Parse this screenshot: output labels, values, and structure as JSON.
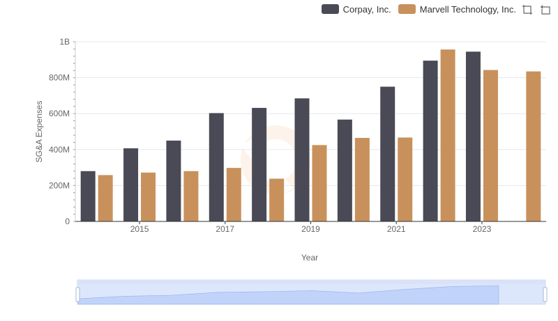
{
  "legend": {
    "items": [
      {
        "label": "Corpay, Inc.",
        "color": "#4a4a56"
      },
      {
        "label": "Marvell Technology, Inc.",
        "color": "#c8915c"
      }
    ]
  },
  "toolbox": {
    "icons": [
      "zoom-icon",
      "restore-icon"
    ]
  },
  "chart_data": {
    "type": "bar",
    "x": [
      2014,
      2015,
      2016,
      2017,
      2018,
      2019,
      2020,
      2021,
      2022,
      2023,
      2024
    ],
    "x_tick_labels": [
      "2015",
      "2017",
      "2019",
      "2021",
      "2023"
    ],
    "y_tick_labels": [
      "0",
      "200M",
      "400M",
      "600M",
      "800M",
      "1B"
    ],
    "xlabel": "Year",
    "ylabel": "SG&A Expenses",
    "ylim": [
      0,
      1000000000
    ],
    "grid": true,
    "legend_position": "top-right",
    "series": [
      {
        "name": "Corpay, Inc.",
        "color": "#4a4a56",
        "values": [
          280000000,
          407000000,
          450000000,
          603000000,
          632000000,
          685000000,
          567000000,
          750000000,
          895000000,
          945000000,
          null
        ]
      },
      {
        "name": "Marvell Technology, Inc.",
        "color": "#c8915c",
        "values": [
          258000000,
          272000000,
          280000000,
          298000000,
          238000000,
          425000000,
          465000000,
          467000000,
          957000000,
          843000000,
          835000000
        ]
      }
    ]
  }
}
